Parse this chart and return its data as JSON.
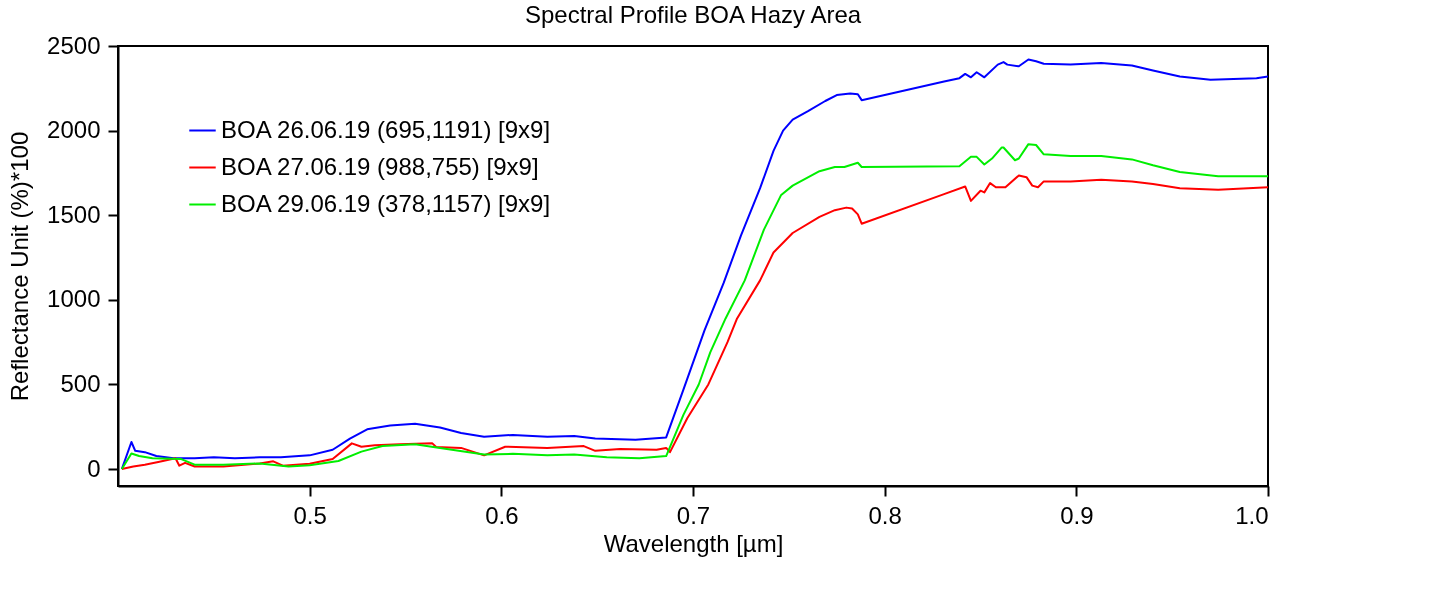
{
  "chart_data": {
    "type": "line",
    "title": "Spectral Profile BOA Hazy Area",
    "xlabel": "Wavelength [µm]",
    "ylabel": "Reflectance Unit (%)*100",
    "xlim": [
      0.4,
      1.0
    ],
    "xticks": [
      0.5,
      0.6,
      0.7,
      0.8,
      0.9,
      {
        "value": 1.0,
        "label": "1.0"
      }
    ],
    "ylim": [
      -100,
      2500
    ],
    "yticks": [
      0,
      500,
      1000,
      1500,
      2000,
      2500
    ],
    "grid": false,
    "legend": "top left",
    "marker": "none",
    "line_style": "solid",
    "series": [
      {
        "name": "BOA 26.06.19 (695,1191) [9x9]",
        "color": "#0000ff",
        "x": [
          0.402,
          0.407,
          0.409,
          0.414,
          0.42,
          0.429,
          0.44,
          0.45,
          0.461,
          0.474,
          0.485,
          0.5,
          0.512,
          0.521,
          0.53,
          0.542,
          0.555,
          0.568,
          0.579,
          0.591,
          0.606,
          0.624,
          0.638,
          0.649,
          0.67,
          0.686,
          0.695,
          0.706,
          0.716,
          0.725,
          0.735,
          0.742,
          0.747,
          0.752,
          0.76,
          0.769,
          0.775,
          0.782,
          0.786,
          0.788,
          0.831,
          0.839,
          0.842,
          0.845,
          0.848,
          0.852,
          0.859,
          0.862,
          0.864,
          0.87,
          0.875,
          0.879,
          0.883,
          0.897,
          0.913,
          0.929,
          0.94,
          0.954,
          0.97,
          0.994,
          1.0
        ],
        "values": [
          0,
          160,
          108,
          100,
          77,
          64,
          64,
          70,
          64,
          70,
          70,
          81,
          114,
          180,
          235,
          257,
          268,
          246,
          213,
          191,
          202,
          191,
          196,
          180,
          174,
          187,
          470,
          820,
          1100,
          1380,
          1660,
          1880,
          2000,
          2065,
          2115,
          2175,
          2210,
          2220,
          2215,
          2180,
          2290,
          2310,
          2335,
          2315,
          2345,
          2315,
          2390,
          2405,
          2390,
          2380,
          2420,
          2410,
          2395,
          2390,
          2400,
          2385,
          2355,
          2320,
          2300,
          2310,
          2320
        ]
      },
      {
        "name": "BOA 27.06.19 (988,755) [9x9]",
        "color": "#ff0000",
        "x": [
          0.402,
          0.408,
          0.414,
          0.421,
          0.43,
          0.432,
          0.435,
          0.44,
          0.455,
          0.474,
          0.481,
          0.486,
          0.5,
          0.512,
          0.522,
          0.527,
          0.534,
          0.547,
          0.564,
          0.566,
          0.579,
          0.591,
          0.602,
          0.624,
          0.643,
          0.649,
          0.662,
          0.681,
          0.686,
          0.688,
          0.697,
          0.708,
          0.718,
          0.723,
          0.735,
          0.742,
          0.752,
          0.766,
          0.774,
          0.78,
          0.783,
          0.786,
          0.788,
          0.831,
          0.842,
          0.845,
          0.85,
          0.852,
          0.855,
          0.858,
          0.863,
          0.87,
          0.874,
          0.877,
          0.88,
          0.883,
          0.897,
          0.913,
          0.929,
          0.94,
          0.954,
          0.974,
          1.0
        ],
        "values": [
          0,
          15,
          26,
          42,
          64,
          20,
          37,
          15,
          15,
          33,
          46,
          20,
          31,
          59,
          152,
          132,
          141,
          147,
          152,
          130,
          125,
          81,
          132,
          125,
          136,
          108,
          119,
          114,
          125,
          100,
          300,
          500,
          750,
          890,
          1115,
          1280,
          1395,
          1490,
          1530,
          1545,
          1540,
          1505,
          1450,
          1625,
          1670,
          1585,
          1645,
          1635,
          1690,
          1665,
          1665,
          1735,
          1725,
          1675,
          1665,
          1700,
          1700,
          1710,
          1700,
          1685,
          1660,
          1650,
          1665
        ]
      },
      {
        "name": "BOA 29.06.19 (378,1157) [9x9]",
        "color": "#00ee00",
        "x": [
          0.402,
          0.407,
          0.411,
          0.418,
          0.433,
          0.44,
          0.455,
          0.474,
          0.489,
          0.5,
          0.515,
          0.527,
          0.538,
          0.555,
          0.568,
          0.591,
          0.606,
          0.624,
          0.638,
          0.655,
          0.672,
          0.686,
          0.695,
          0.703,
          0.709,
          0.717,
          0.727,
          0.737,
          0.746,
          0.752,
          0.766,
          0.774,
          0.779,
          0.786,
          0.788,
          0.839,
          0.845,
          0.848,
          0.852,
          0.856,
          0.861,
          0.862,
          0.868,
          0.87,
          0.875,
          0.879,
          0.883,
          0.897,
          0.913,
          0.929,
          0.94,
          0.954,
          0.974,
          1.0
        ],
        "values": [
          0,
          92,
          77,
          64,
          59,
          26,
          26,
          33,
          15,
          22,
          48,
          103,
          136,
          147,
          125,
          86,
          90,
          81,
          86,
          70,
          64,
          77,
          320,
          500,
          690,
          890,
          1115,
          1415,
          1620,
          1675,
          1760,
          1785,
          1785,
          1810,
          1785,
          1790,
          1845,
          1845,
          1800,
          1835,
          1900,
          1900,
          1825,
          1835,
          1920,
          1915,
          1860,
          1850,
          1850,
          1830,
          1795,
          1755,
          1730,
          1730
        ]
      }
    ]
  }
}
